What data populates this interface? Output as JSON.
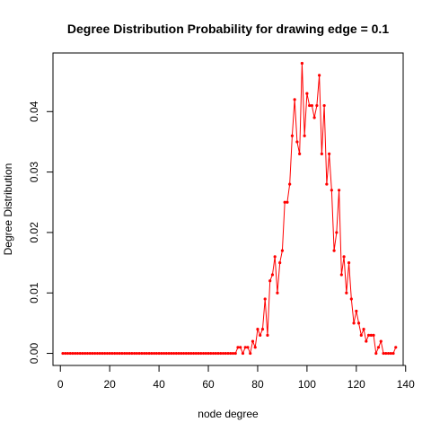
{
  "chart_data": {
    "type": "line",
    "title": "Degree Distribution Probability for drawing edge =  0.1",
    "xlabel": "node degree",
    "ylabel": "Degree Distribution",
    "xlim": [
      -3,
      139
    ],
    "ylim": [
      -0.002,
      0.0497
    ],
    "x_ticks": [
      0,
      20,
      40,
      60,
      80,
      100,
      120,
      140
    ],
    "y_ticks": [
      0.0,
      0.01,
      0.02,
      0.03,
      0.04
    ],
    "y_tick_labels": [
      "0.00",
      "0.01",
      "0.02",
      "0.03",
      "0.04"
    ],
    "grid": false,
    "legend": "none",
    "series": [
      {
        "color": "#ff0000",
        "marker": "dot",
        "x": [
          1,
          2,
          3,
          4,
          5,
          6,
          7,
          8,
          9,
          10,
          11,
          12,
          13,
          14,
          15,
          16,
          17,
          18,
          19,
          20,
          21,
          22,
          23,
          24,
          25,
          26,
          27,
          28,
          29,
          30,
          31,
          32,
          33,
          34,
          35,
          36,
          37,
          38,
          39,
          40,
          41,
          42,
          43,
          44,
          45,
          46,
          47,
          48,
          49,
          50,
          51,
          52,
          53,
          54,
          55,
          56,
          57,
          58,
          59,
          60,
          61,
          62,
          63,
          64,
          65,
          66,
          67,
          68,
          69,
          70,
          71,
          72,
          73,
          74,
          75,
          76,
          77,
          78,
          79,
          80,
          81,
          82,
          83,
          84,
          85,
          86,
          87,
          88,
          89,
          90,
          91,
          92,
          93,
          94,
          95,
          96,
          97,
          98,
          99,
          100,
          101,
          102,
          103,
          104,
          105,
          106,
          107,
          108,
          109,
          110,
          111,
          112,
          113,
          114,
          115,
          116,
          117,
          118,
          119,
          120,
          121,
          122,
          123,
          124,
          125,
          126,
          127,
          128,
          129,
          130,
          131,
          132,
          133,
          134,
          135,
          136
        ],
        "y": [
          0,
          0,
          0,
          0,
          0,
          0,
          0,
          0,
          0,
          0,
          0,
          0,
          0,
          0,
          0,
          0,
          0,
          0,
          0,
          0,
          0,
          0,
          0,
          0,
          0,
          0,
          0,
          0,
          0,
          0,
          0,
          0,
          0,
          0,
          0,
          0,
          0,
          0,
          0,
          0,
          0,
          0,
          0,
          0,
          0,
          0,
          0,
          0,
          0,
          0,
          0,
          0,
          0,
          0,
          0,
          0,
          0,
          0,
          0,
          0,
          0,
          0,
          0,
          0,
          0,
          0,
          0,
          0,
          0,
          0,
          0,
          0.001,
          0.001,
          0,
          0.001,
          0.001,
          0,
          0.002,
          0.001,
          0.004,
          0.003,
          0.004,
          0.009,
          0.003,
          0.012,
          0.013,
          0.016,
          0.01,
          0.015,
          0.017,
          0.025,
          0.025,
          0.028,
          0.036,
          0.042,
          0.035,
          0.033,
          0.048,
          0.036,
          0.043,
          0.041,
          0.041,
          0.039,
          0.041,
          0.046,
          0.033,
          0.041,
          0.028,
          0.033,
          0.027,
          0.017,
          0.02,
          0.027,
          0.013,
          0.016,
          0.01,
          0.015,
          0.009,
          0.005,
          0.007,
          0.005,
          0.003,
          0.004,
          0.002,
          0.003,
          0.003,
          0.003,
          0,
          0.001,
          0.002,
          0,
          0,
          0,
          0,
          0,
          0.001
        ]
      }
    ]
  }
}
